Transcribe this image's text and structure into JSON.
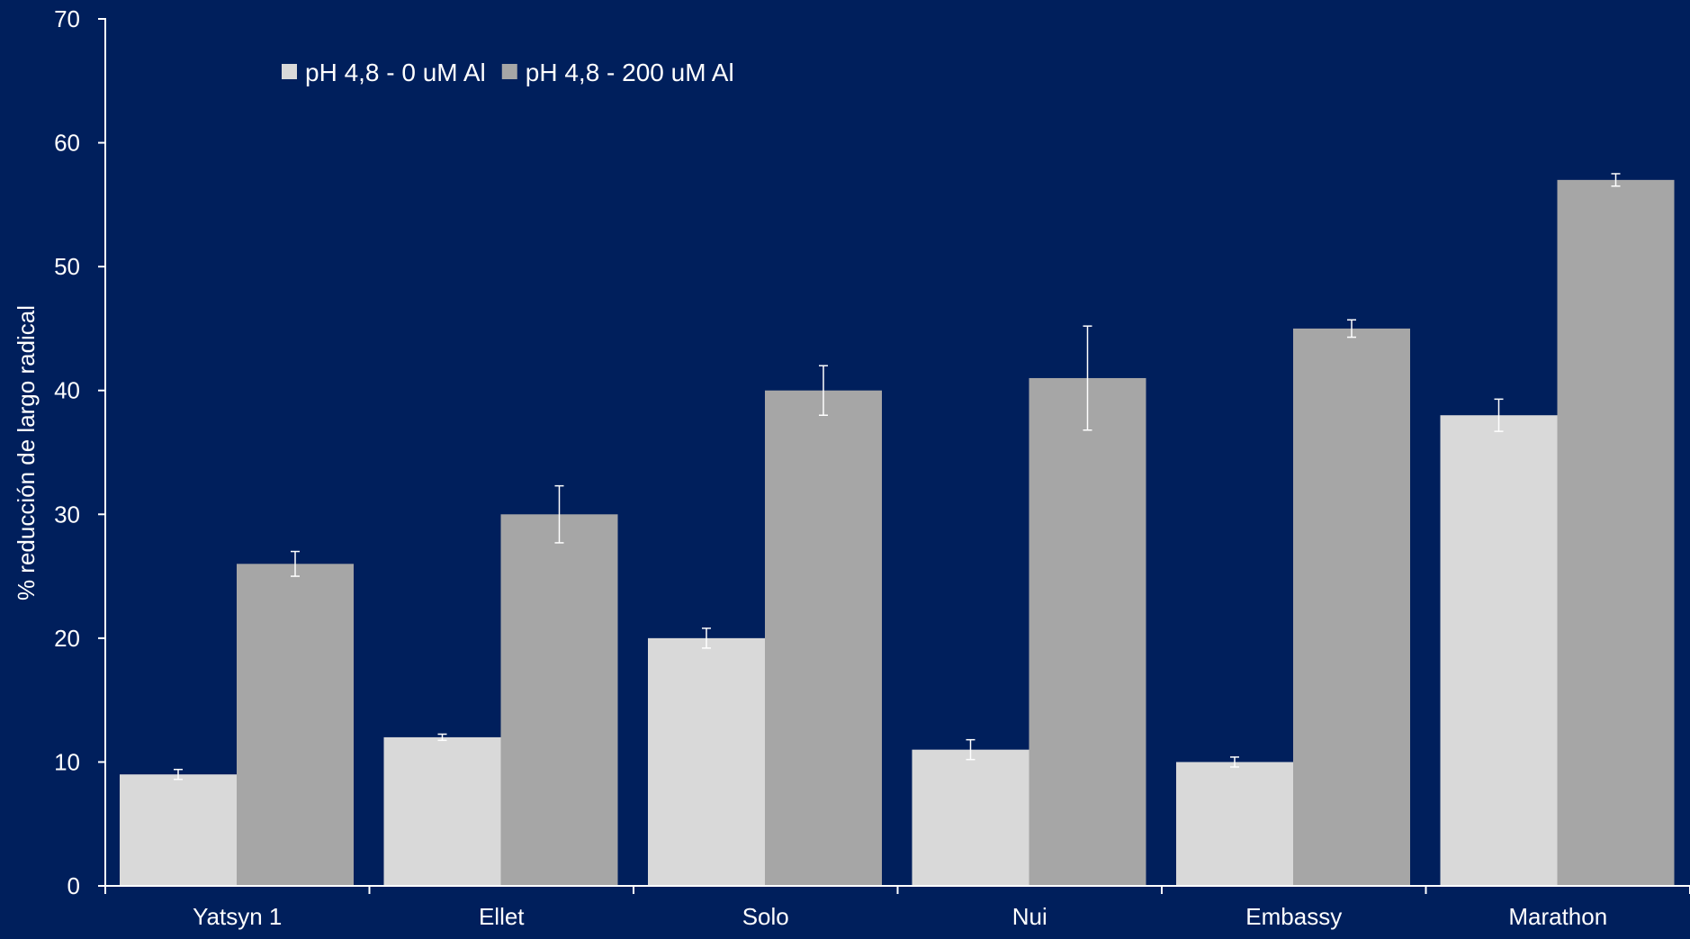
{
  "colors": {
    "background": "#001f5c",
    "axis": "#ffffff",
    "series_0": "#d9d9d9",
    "series_1": "#a6a6a6",
    "error_bar": "#ffffff"
  },
  "chart_data": {
    "type": "bar",
    "title": "",
    "xlabel": "",
    "ylabel": "% reducción de largo radical",
    "ylim": [
      0,
      70
    ],
    "yticks": [
      0,
      10,
      20,
      30,
      40,
      50,
      60,
      70
    ],
    "grid": false,
    "legend_position": "top-left",
    "categories": [
      "Yatsyn 1",
      "Ellet",
      "Solo",
      "Nui",
      "Embassy",
      "Marathon"
    ],
    "series": [
      {
        "name": "pH 4,8 - 0 uM Al",
        "values": [
          9,
          12,
          20,
          11,
          10,
          38
        ],
        "errors": [
          0.4,
          0.25,
          0.8,
          0.8,
          0.4,
          1.3
        ]
      },
      {
        "name": "pH 4,8 - 200 uM Al",
        "values": [
          26,
          30,
          40,
          41,
          45,
          57
        ],
        "errors": [
          1.0,
          2.3,
          2.0,
          4.2,
          0.7,
          0.5
        ]
      }
    ]
  }
}
